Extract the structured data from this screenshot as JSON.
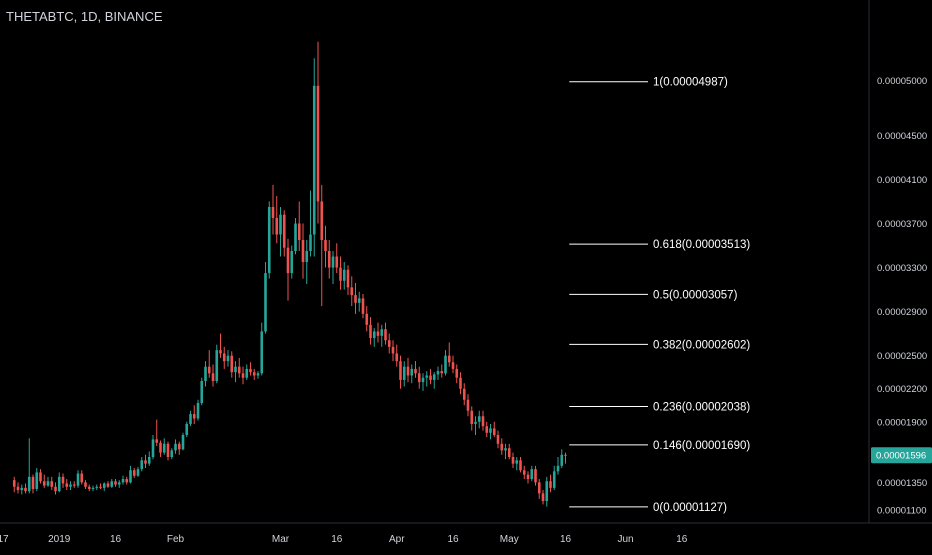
{
  "header": {
    "ticker": "THETABTC, 1D, BINANCE"
  },
  "colors": {
    "background": "#000000",
    "up": "#26a69a",
    "down": "#ef5350",
    "fib_line": "#ffffff",
    "axis_text": "#d1d4dc",
    "price_tag_bg": "#26a69a",
    "price_tag_text": "#ffffff"
  },
  "chart_data": {
    "type": "candlestick",
    "title": "THETABTC, 1D, BINANCE",
    "ylim": [
      9.9e-06,
      5.62e-05
    ],
    "y_ticks": [
      {
        "value": 5e-05,
        "label": "0.00005000"
      },
      {
        "value": 4.5e-05,
        "label": "0.00004500"
      },
      {
        "value": 4.1e-05,
        "label": "0.00004100"
      },
      {
        "value": 3.7e-05,
        "label": "0.00003700"
      },
      {
        "value": 3.3e-05,
        "label": "0.00003300"
      },
      {
        "value": 2.9e-05,
        "label": "0.00002900"
      },
      {
        "value": 2.5e-05,
        "label": "0.00002500"
      },
      {
        "value": 2.2e-05,
        "label": "0.00002200"
      },
      {
        "value": 1.9e-05,
        "label": "0.00001900"
      },
      {
        "value": 1.35e-05,
        "label": "0.00001350"
      },
      {
        "value": 1.1e-05,
        "label": "0.00001100"
      }
    ],
    "x_ticks": [
      {
        "date": "2018-12-17",
        "label": "17"
      },
      {
        "date": "2019-01-01",
        "label": "2019"
      },
      {
        "date": "2019-01-16",
        "label": "16"
      },
      {
        "date": "2019-02-01",
        "label": "Feb"
      },
      {
        "date": "2019-03-01",
        "label": "Mar"
      },
      {
        "date": "2019-03-16",
        "label": "16"
      },
      {
        "date": "2019-04-01",
        "label": "Apr"
      },
      {
        "date": "2019-04-16",
        "label": "16"
      },
      {
        "date": "2019-05-01",
        "label": "May"
      },
      {
        "date": "2019-05-16",
        "label": "16"
      },
      {
        "date": "2019-06-01",
        "label": "Jun"
      },
      {
        "date": "2019-06-16",
        "label": "16"
      }
    ],
    "x_range": [
      "2018-12-17",
      "2019-06-19"
    ],
    "current_price": {
      "value": 1.596e-05,
      "label": "0.00001596"
    },
    "fib_levels": [
      {
        "ratio": 1,
        "price": 4.987e-05,
        "label": "1(0.00004987)"
      },
      {
        "ratio": 0.618,
        "price": 3.513e-05,
        "label": "0.618(0.00003513)"
      },
      {
        "ratio": 0.5,
        "price": 3.057e-05,
        "label": "0.5(0.00003057)"
      },
      {
        "ratio": 0.382,
        "price": 2.602e-05,
        "label": "0.382(0.00002602)"
      },
      {
        "ratio": 0.236,
        "price": 2.038e-05,
        "label": "0.236(0.00002038)"
      },
      {
        "ratio": 0.146,
        "price": 1.69e-05,
        "label": "0.146(0.00001690)"
      },
      {
        "ratio": 0,
        "price": 1.127e-05,
        "label": "0(0.00001127)"
      }
    ],
    "fib_range": [
      "2019-05-17",
      "2019-06-07"
    ],
    "candles": [
      [
        "2018-12-20",
        1.37,
        1.4,
        1.26,
        1.31
      ],
      [
        "2018-12-21",
        1.31,
        1.35,
        1.25,
        1.28
      ],
      [
        "2018-12-22",
        1.28,
        1.33,
        1.24,
        1.3
      ],
      [
        "2018-12-23",
        1.3,
        1.34,
        1.25,
        1.27
      ],
      [
        "2018-12-24",
        1.27,
        1.75,
        1.25,
        1.4
      ],
      [
        "2018-12-25",
        1.4,
        1.42,
        1.25,
        1.29
      ],
      [
        "2018-12-26",
        1.29,
        1.48,
        1.27,
        1.44
      ],
      [
        "2018-12-27",
        1.44,
        1.47,
        1.34,
        1.36
      ],
      [
        "2018-12-28",
        1.36,
        1.42,
        1.3,
        1.32
      ],
      [
        "2018-12-29",
        1.32,
        1.4,
        1.31,
        1.36
      ],
      [
        "2018-12-30",
        1.36,
        1.4,
        1.28,
        1.31
      ],
      [
        "2018-12-31",
        1.31,
        1.35,
        1.24,
        1.27
      ],
      [
        "2019-01-01",
        1.27,
        1.44,
        1.26,
        1.4
      ],
      [
        "2019-01-02",
        1.4,
        1.43,
        1.3,
        1.34
      ],
      [
        "2019-01-03",
        1.34,
        1.38,
        1.28,
        1.31
      ],
      [
        "2019-01-04",
        1.31,
        1.36,
        1.28,
        1.33
      ],
      [
        "2019-01-05",
        1.33,
        1.36,
        1.3,
        1.32
      ],
      [
        "2019-01-06",
        1.32,
        1.46,
        1.3,
        1.43
      ],
      [
        "2019-01-07",
        1.43,
        1.46,
        1.33,
        1.35
      ],
      [
        "2019-01-08",
        1.35,
        1.37,
        1.29,
        1.31
      ],
      [
        "2019-01-09",
        1.31,
        1.33,
        1.27,
        1.29
      ],
      [
        "2019-01-10",
        1.29,
        1.32,
        1.27,
        1.3
      ],
      [
        "2019-01-11",
        1.3,
        1.33,
        1.28,
        1.31
      ],
      [
        "2019-01-12",
        1.31,
        1.34,
        1.29,
        1.3
      ],
      [
        "2019-01-13",
        1.3,
        1.35,
        1.27,
        1.34
      ],
      [
        "2019-01-14",
        1.34,
        1.36,
        1.3,
        1.31
      ],
      [
        "2019-01-15",
        1.31,
        1.38,
        1.3,
        1.36
      ],
      [
        "2019-01-16",
        1.36,
        1.38,
        1.31,
        1.33
      ],
      [
        "2019-01-17",
        1.33,
        1.37,
        1.3,
        1.35
      ],
      [
        "2019-01-18",
        1.35,
        1.41,
        1.33,
        1.38
      ],
      [
        "2019-01-19",
        1.38,
        1.4,
        1.33,
        1.35
      ],
      [
        "2019-01-20",
        1.35,
        1.5,
        1.34,
        1.46
      ],
      [
        "2019-01-21",
        1.46,
        1.48,
        1.39,
        1.41
      ],
      [
        "2019-01-22",
        1.41,
        1.49,
        1.4,
        1.47
      ],
      [
        "2019-01-23",
        1.47,
        1.58,
        1.45,
        1.55
      ],
      [
        "2019-01-24",
        1.55,
        1.6,
        1.48,
        1.52
      ],
      [
        "2019-01-25",
        1.52,
        1.63,
        1.5,
        1.58
      ],
      [
        "2019-01-26",
        1.58,
        1.78,
        1.56,
        1.74
      ],
      [
        "2019-01-27",
        1.74,
        1.92,
        1.68,
        1.71
      ],
      [
        "2019-01-28",
        1.71,
        1.73,
        1.58,
        1.62
      ],
      [
        "2019-01-29",
        1.62,
        1.75,
        1.6,
        1.7
      ],
      [
        "2019-01-30",
        1.7,
        1.72,
        1.55,
        1.58
      ],
      [
        "2019-01-31",
        1.58,
        1.66,
        1.56,
        1.64
      ],
      [
        "2019-02-01",
        1.64,
        1.74,
        1.61,
        1.7
      ],
      [
        "2019-02-02",
        1.7,
        1.72,
        1.6,
        1.65
      ],
      [
        "2019-02-03",
        1.65,
        1.8,
        1.64,
        1.78
      ],
      [
        "2019-02-04",
        1.78,
        1.9,
        1.76,
        1.88
      ],
      [
        "2019-02-05",
        1.88,
        2.0,
        1.86,
        1.97
      ],
      [
        "2019-02-06",
        1.97,
        2.05,
        1.88,
        1.93
      ],
      [
        "2019-02-07",
        1.93,
        2.1,
        1.91,
        2.07
      ],
      [
        "2019-02-08",
        2.07,
        2.3,
        2.05,
        2.27
      ],
      [
        "2019-02-09",
        2.27,
        2.45,
        2.22,
        2.4
      ],
      [
        "2019-02-10",
        2.4,
        2.55,
        2.3,
        2.34
      ],
      [
        "2019-02-11",
        2.34,
        2.42,
        2.22,
        2.27
      ],
      [
        "2019-02-12",
        2.27,
        2.6,
        2.25,
        2.55
      ],
      [
        "2019-02-13",
        2.55,
        2.7,
        2.48,
        2.52
      ],
      [
        "2019-02-14",
        2.52,
        2.58,
        2.38,
        2.45
      ],
      [
        "2019-02-15",
        2.45,
        2.55,
        2.4,
        2.5
      ],
      [
        "2019-02-16",
        2.5,
        2.54,
        2.3,
        2.35
      ],
      [
        "2019-02-17",
        2.35,
        2.45,
        2.26,
        2.4
      ],
      [
        "2019-02-18",
        2.4,
        2.48,
        2.3,
        2.34
      ],
      [
        "2019-02-19",
        2.34,
        2.4,
        2.24,
        2.3
      ],
      [
        "2019-02-20",
        2.3,
        2.42,
        2.28,
        2.38
      ],
      [
        "2019-02-21",
        2.38,
        2.44,
        2.32,
        2.35
      ],
      [
        "2019-02-22",
        2.35,
        2.38,
        2.28,
        2.32
      ],
      [
        "2019-02-23",
        2.32,
        2.36,
        2.29,
        2.34
      ],
      [
        "2019-02-24",
        2.34,
        2.8,
        2.32,
        2.72
      ],
      [
        "2019-02-25",
        2.72,
        3.35,
        2.7,
        3.25
      ],
      [
        "2019-02-26",
        3.25,
        3.9,
        3.2,
        3.85
      ],
      [
        "2019-02-27",
        3.85,
        4.05,
        3.6,
        3.75
      ],
      [
        "2019-02-28",
        3.75,
        3.95,
        3.52,
        3.6
      ],
      [
        "2019-03-01",
        3.6,
        3.85,
        3.4,
        3.78
      ],
      [
        "2019-03-02",
        3.78,
        3.82,
        3.4,
        3.48
      ],
      [
        "2019-03-03",
        3.48,
        3.56,
        3.0,
        3.25
      ],
      [
        "2019-03-04",
        3.25,
        3.5,
        3.2,
        3.45
      ],
      [
        "2019-03-05",
        3.45,
        3.75,
        3.42,
        3.7
      ],
      [
        "2019-03-06",
        3.7,
        3.9,
        3.45,
        3.55
      ],
      [
        "2019-03-07",
        3.55,
        3.7,
        3.2,
        3.35
      ],
      [
        "2019-03-08",
        3.35,
        3.55,
        3.15,
        3.45
      ],
      [
        "2019-03-09",
        3.45,
        4.0,
        3.4,
        3.6
      ],
      [
        "2019-03-10",
        3.6,
        5.2,
        3.4,
        4.95
      ],
      [
        "2019-03-11",
        4.95,
        5.35,
        3.7,
        3.9
      ],
      [
        "2019-03-12",
        3.9,
        4.05,
        2.95,
        3.55
      ],
      [
        "2019-03-13",
        3.55,
        3.68,
        3.3,
        3.45
      ],
      [
        "2019-03-14",
        3.45,
        3.55,
        3.2,
        3.3
      ],
      [
        "2019-03-15",
        3.3,
        3.45,
        3.15,
        3.4
      ],
      [
        "2019-03-16",
        3.4,
        3.52,
        3.25,
        3.3
      ],
      [
        "2019-03-17",
        3.3,
        3.4,
        3.1,
        3.18
      ],
      [
        "2019-03-18",
        3.18,
        3.35,
        3.1,
        3.28
      ],
      [
        "2019-03-19",
        3.28,
        3.32,
        3.05,
        3.12
      ],
      [
        "2019-03-20",
        3.12,
        3.22,
        2.95,
        3.05
      ],
      [
        "2019-03-21",
        3.05,
        3.16,
        2.88,
        2.98
      ],
      [
        "2019-03-22",
        2.98,
        3.08,
        2.9,
        3.02
      ],
      [
        "2019-03-23",
        3.02,
        3.06,
        2.84,
        2.88
      ],
      [
        "2019-03-24",
        2.88,
        2.95,
        2.72,
        2.78
      ],
      [
        "2019-03-25",
        2.78,
        2.85,
        2.6,
        2.66
      ],
      [
        "2019-03-26",
        2.66,
        2.75,
        2.58,
        2.72
      ],
      [
        "2019-03-27",
        2.72,
        2.8,
        2.62,
        2.68
      ],
      [
        "2019-03-28",
        2.68,
        2.78,
        2.58,
        2.74
      ],
      [
        "2019-03-29",
        2.74,
        2.8,
        2.6,
        2.64
      ],
      [
        "2019-03-30",
        2.64,
        2.7,
        2.52,
        2.58
      ],
      [
        "2019-03-31",
        2.58,
        2.64,
        2.45,
        2.52
      ],
      [
        "2019-04-01",
        2.52,
        2.6,
        2.4,
        2.45
      ],
      [
        "2019-04-02",
        2.45,
        2.5,
        2.2,
        2.28
      ],
      [
        "2019-04-03",
        2.28,
        2.45,
        2.22,
        2.4
      ],
      [
        "2019-04-04",
        2.4,
        2.48,
        2.26,
        2.32
      ],
      [
        "2019-04-05",
        2.32,
        2.42,
        2.25,
        2.38
      ],
      [
        "2019-04-06",
        2.38,
        2.45,
        2.3,
        2.34
      ],
      [
        "2019-04-07",
        2.34,
        2.4,
        2.2,
        2.26
      ],
      [
        "2019-04-08",
        2.26,
        2.34,
        2.18,
        2.3
      ],
      [
        "2019-04-09",
        2.3,
        2.36,
        2.22,
        2.32
      ],
      [
        "2019-04-10",
        2.32,
        2.38,
        2.24,
        2.28
      ],
      [
        "2019-04-11",
        2.28,
        2.35,
        2.2,
        2.33
      ],
      [
        "2019-04-12",
        2.33,
        2.4,
        2.28,
        2.36
      ],
      [
        "2019-04-13",
        2.36,
        2.42,
        2.3,
        2.34
      ],
      [
        "2019-04-14",
        2.34,
        2.55,
        2.32,
        2.5
      ],
      [
        "2019-04-15",
        2.5,
        2.62,
        2.4,
        2.44
      ],
      [
        "2019-04-16",
        2.44,
        2.5,
        2.34,
        2.38
      ],
      [
        "2019-04-17",
        2.38,
        2.42,
        2.25,
        2.3
      ],
      [
        "2019-04-18",
        2.3,
        2.35,
        2.15,
        2.2
      ],
      [
        "2019-04-19",
        2.2,
        2.25,
        2.05,
        2.1
      ],
      [
        "2019-04-20",
        2.1,
        2.15,
        1.95,
        2.0
      ],
      [
        "2019-04-21",
        2.0,
        2.04,
        1.82,
        1.88
      ],
      [
        "2019-04-22",
        1.88,
        1.95,
        1.78,
        1.9
      ],
      [
        "2019-04-23",
        1.9,
        2.0,
        1.84,
        1.95
      ],
      [
        "2019-04-24",
        1.95,
        2.0,
        1.82,
        1.86
      ],
      [
        "2019-04-25",
        1.86,
        1.9,
        1.76,
        1.8
      ],
      [
        "2019-04-26",
        1.8,
        1.88,
        1.74,
        1.84
      ],
      [
        "2019-04-27",
        1.84,
        1.9,
        1.76,
        1.78
      ],
      [
        "2019-04-28",
        1.78,
        1.82,
        1.66,
        1.7
      ],
      [
        "2019-04-29",
        1.7,
        1.75,
        1.6,
        1.64
      ],
      [
        "2019-04-30",
        1.64,
        1.7,
        1.56,
        1.66
      ],
      [
        "2019-05-01",
        1.66,
        1.7,
        1.56,
        1.58
      ],
      [
        "2019-05-02",
        1.58,
        1.62,
        1.48,
        1.52
      ],
      [
        "2019-05-03",
        1.52,
        1.58,
        1.46,
        1.55
      ],
      [
        "2019-05-04",
        1.55,
        1.58,
        1.44,
        1.46
      ],
      [
        "2019-05-05",
        1.46,
        1.5,
        1.38,
        1.42
      ],
      [
        "2019-05-06",
        1.42,
        1.45,
        1.34,
        1.38
      ],
      [
        "2019-05-07",
        1.38,
        1.5,
        1.36,
        1.47
      ],
      [
        "2019-05-08",
        1.47,
        1.5,
        1.32,
        1.35
      ],
      [
        "2019-05-09",
        1.35,
        1.38,
        1.2,
        1.25
      ],
      [
        "2019-05-10",
        1.25,
        1.28,
        1.15,
        1.18
      ],
      [
        "2019-05-11",
        1.18,
        1.4,
        1.13,
        1.36
      ],
      [
        "2019-05-12",
        1.36,
        1.42,
        1.26,
        1.3
      ],
      [
        "2019-05-13",
        1.3,
        1.5,
        1.28,
        1.45
      ],
      [
        "2019-05-14",
        1.45,
        1.58,
        1.42,
        1.5
      ],
      [
        "2019-05-15",
        1.5,
        1.65,
        1.48,
        1.6
      ],
      [
        "2019-05-16",
        1.6,
        1.62,
        1.52,
        1.596
      ]
    ]
  }
}
